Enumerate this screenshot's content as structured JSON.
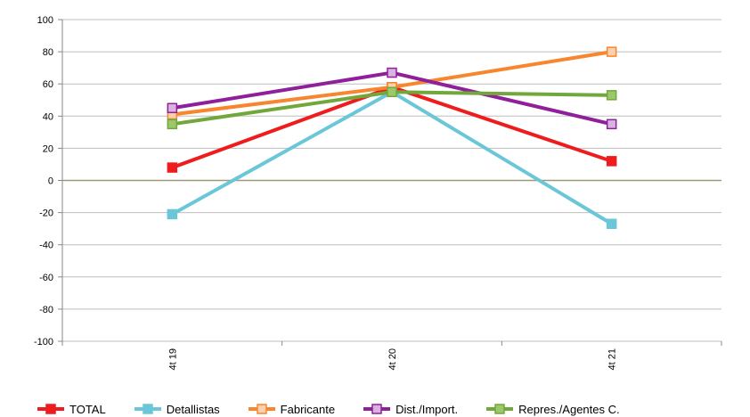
{
  "chart_data": {
    "type": "line",
    "categories": [
      "4t 19",
      "4t 20",
      "4t 21"
    ],
    "ylim": [
      -100,
      100
    ],
    "yticks": [
      100,
      80,
      60,
      40,
      20,
      0,
      -20,
      -40,
      -60,
      -80,
      -100
    ],
    "grid": true,
    "legend_position": "bottom",
    "series": [
      {
        "name": "TOTAL",
        "color": "#ee1c1c",
        "marker_fill": "#ee1c1c",
        "values": [
          8,
          58,
          12
        ]
      },
      {
        "name": "Detallistas",
        "color": "#6bc7d8",
        "marker_fill": "#6bc7d8",
        "values": [
          -21,
          55,
          -27
        ]
      },
      {
        "name": "Fabricante",
        "color": "#f7862e",
        "marker_fill": "#fbd1ad",
        "values": [
          41,
          58,
          80
        ]
      },
      {
        "name": "Dist./Import.",
        "color": "#8f1f9b",
        "marker_fill": "#d9b3e0",
        "values": [
          45,
          67,
          35
        ]
      },
      {
        "name": "Repres./Agentes C.",
        "color": "#72a83b",
        "marker_fill": "#9cc86a",
        "values": [
          35,
          55,
          53
        ]
      }
    ]
  }
}
